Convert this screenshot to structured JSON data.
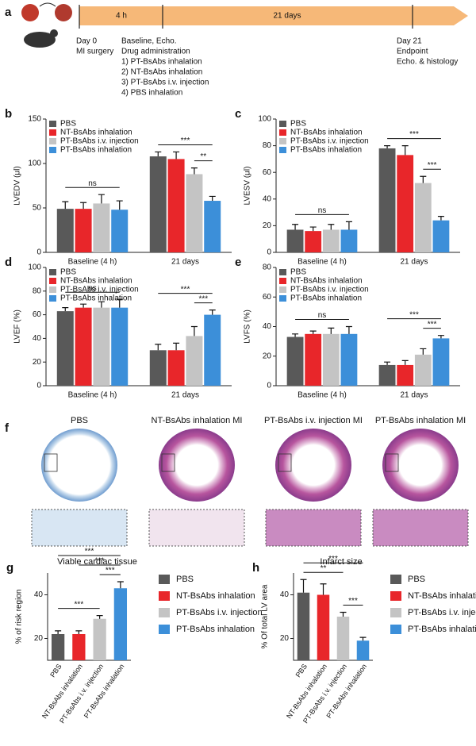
{
  "timeline": {
    "label": "a",
    "segments": [
      "4 h",
      "21 days"
    ],
    "start": [
      "Day 0",
      "MI surgery"
    ],
    "baseline": [
      "Baseline, Echo.",
      "Drug administration",
      "1) PT-BsAbs inhalation",
      "2) NT-BsAbs inhalation",
      "3) PT-BsAbs i.v. injection",
      "4) PBS inhalation"
    ],
    "end": [
      "Day 21",
      "Endpoint",
      "Echo. & histology"
    ]
  },
  "chart_data": [
    {
      "type": "grouped_bar",
      "panel": "b",
      "ylabel": "LVEDV (μl)",
      "categories": [
        "Baseline (4 h)",
        "21 days"
      ],
      "ylim": [
        0,
        150
      ],
      "yticks": [
        0,
        50,
        100,
        150
      ],
      "series": [
        {
          "name": "PBS",
          "color": "#595959",
          "values": [
            49,
            108
          ],
          "errors": [
            8,
            5
          ]
        },
        {
          "name": "NT-BsAbs inhalation",
          "color": "#e8262a",
          "values": [
            49,
            105
          ],
          "errors": [
            7,
            8
          ]
        },
        {
          "name": "PT-BsAbs i.v. injection",
          "color": "#c4c4c4",
          "values": [
            55,
            88
          ],
          "errors": [
            10,
            7
          ]
        },
        {
          "name": "PT-BsAbs inhalation",
          "color": "#3c8fd9",
          "values": [
            48,
            58
          ],
          "errors": [
            10,
            5
          ]
        }
      ],
      "annotations": [
        "ns",
        "***",
        "**"
      ]
    },
    {
      "type": "grouped_bar",
      "panel": "c",
      "ylabel": "LVESV (μl)",
      "categories": [
        "Baseline (4 h)",
        "21 days"
      ],
      "ylim": [
        0,
        100
      ],
      "yticks": [
        0,
        20,
        40,
        60,
        80,
        100
      ],
      "series": [
        {
          "name": "PBS",
          "color": "#595959",
          "values": [
            17,
            78
          ],
          "errors": [
            4,
            2
          ]
        },
        {
          "name": "NT-BsAbs inhalation",
          "color": "#e8262a",
          "values": [
            16,
            73
          ],
          "errors": [
            3,
            7
          ]
        },
        {
          "name": "PT-BsAbs i.v. injection",
          "color": "#c4c4c4",
          "values": [
            17,
            52
          ],
          "errors": [
            4,
            5
          ]
        },
        {
          "name": "PT-BsAbs inhalation",
          "color": "#3c8fd9",
          "values": [
            17,
            24
          ],
          "errors": [
            6,
            3
          ]
        }
      ],
      "annotations": [
        "ns",
        "***",
        "***"
      ]
    },
    {
      "type": "grouped_bar",
      "panel": "d",
      "ylabel": "LVEF (%)",
      "categories": [
        "Baseline (4 h)",
        "21 days"
      ],
      "ylim": [
        0,
        100
      ],
      "yticks": [
        0,
        20,
        40,
        60,
        80,
        100
      ],
      "series": [
        {
          "name": "PBS",
          "color": "#595959",
          "values": [
            63,
            30
          ],
          "errors": [
            3,
            5
          ]
        },
        {
          "name": "NT-BsAbs inhalation",
          "color": "#e8262a",
          "values": [
            66,
            30
          ],
          "errors": [
            3,
            6
          ]
        },
        {
          "name": "PT-BsAbs i.v. injection",
          "color": "#c4c4c4",
          "values": [
            66,
            42
          ],
          "errors": [
            5,
            8
          ]
        },
        {
          "name": "PT-BsAbs inhalation",
          "color": "#3c8fd9",
          "values": [
            66,
            60
          ],
          "errors": [
            7,
            4
          ]
        }
      ],
      "annotations": [
        "ns",
        "***",
        "***"
      ]
    },
    {
      "type": "grouped_bar",
      "panel": "e",
      "ylabel": "LVFS (%)",
      "categories": [
        "Baseline (4 h)",
        "21 days"
      ],
      "ylim": [
        0,
        80
      ],
      "yticks": [
        0,
        20,
        40,
        60,
        80
      ],
      "series": [
        {
          "name": "PBS",
          "color": "#595959",
          "values": [
            33,
            14
          ],
          "errors": [
            2,
            2
          ]
        },
        {
          "name": "NT-BsAbs inhalation",
          "color": "#e8262a",
          "values": [
            35,
            14
          ],
          "errors": [
            2,
            3
          ]
        },
        {
          "name": "PT-BsAbs i.v. injection",
          "color": "#c4c4c4",
          "values": [
            35,
            21
          ],
          "errors": [
            4,
            4
          ]
        },
        {
          "name": "PT-BsAbs inhalation",
          "color": "#3c8fd9",
          "values": [
            35,
            32
          ],
          "errors": [
            5,
            2
          ]
        }
      ],
      "annotations": [
        "ns",
        "***",
        "***"
      ]
    },
    {
      "type": "bar",
      "panel": "g",
      "title": "Viable cardiac tissue",
      "ylabel": "% of risk region",
      "categories": [
        "PBS",
        "NT-BsAbs inhalation",
        "PT-BsAbs i.v. injection",
        "PT-BsAbs inhalation"
      ],
      "colors": [
        "#595959",
        "#e8262a",
        "#c4c4c4",
        "#3c8fd9"
      ],
      "values": [
        22,
        22,
        29,
        43
      ],
      "errors": [
        1.5,
        1.5,
        1.5,
        3
      ],
      "ylim": [
        10,
        50
      ],
      "yticks": [
        20,
        40
      ],
      "annotations": [
        "***",
        "***",
        "***",
        "***"
      ]
    },
    {
      "type": "bar",
      "panel": "h",
      "title": "Infarct size",
      "ylabel": "% Of total LV area",
      "categories": [
        "PBS",
        "NT-BsAbs inhalation",
        "PT-BsAbs i.v. injection",
        "PT-BsAbs inhalation"
      ],
      "colors": [
        "#595959",
        "#e8262a",
        "#c4c4c4",
        "#3c8fd9"
      ],
      "values": [
        41,
        40,
        30,
        19
      ],
      "errors": [
        6,
        5,
        2,
        1.5
      ],
      "ylim": [
        10,
        50
      ],
      "yticks": [
        20,
        40
      ],
      "annotations": [
        "***",
        "**",
        "***"
      ]
    }
  ],
  "histology": {
    "label": "f",
    "titles": [
      "PBS",
      "NT-BsAbs inhalation MI",
      "PT-BsAbs  i.v. injection MI",
      "PT-BsAbs  inhalation MI"
    ]
  }
}
